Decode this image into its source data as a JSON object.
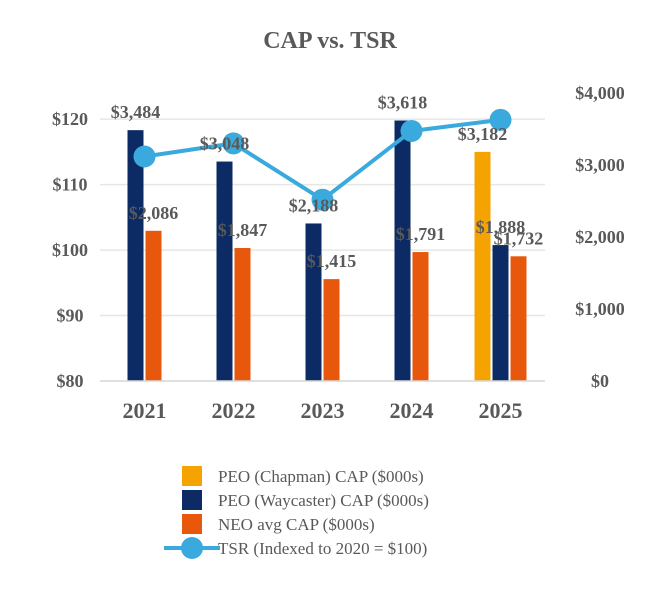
{
  "chart_data": {
    "type": "bar",
    "title": "CAP vs. TSR",
    "categories": [
      "2021",
      "2022",
      "2023",
      "2024",
      "2025"
    ],
    "y_left": {
      "ticks": [
        "$80",
        "$90",
        "$100",
        "$110",
        "$120"
      ],
      "range": [
        80,
        124
      ]
    },
    "y_right": {
      "ticks": [
        "$0",
        "$1,000",
        "$2,000",
        "$3,000",
        "$4,000"
      ],
      "range": [
        0,
        4000
      ]
    },
    "series": [
      {
        "name": "PEO (Chapman) CAP ($000s)",
        "kind": "bar",
        "axis": "right",
        "color": "#F5A300",
        "values": [
          null,
          null,
          null,
          null,
          3182
        ],
        "labels": [
          "",
          "",
          "",
          "",
          "$3,182"
        ]
      },
      {
        "name": "PEO (Waycaster) CAP ($000s)",
        "kind": "bar",
        "axis": "right",
        "color": "#0C2B64",
        "values": [
          3484,
          3048,
          2188,
          3618,
          1888
        ],
        "labels": [
          "$3,484",
          "$3,048",
          "$2,188",
          "$3,618",
          "$1,888"
        ]
      },
      {
        "name": "NEO avg CAP ($000s)",
        "kind": "bar",
        "axis": "right",
        "color": "#E8580C",
        "values": [
          2086,
          1847,
          1415,
          1791,
          1732
        ],
        "labels": [
          "$2,086",
          "$1,847",
          "$1,415",
          "$1,791",
          "$1,732"
        ]
      },
      {
        "name": "TSR (Indexed to 2020 = $100)",
        "kind": "line",
        "axis": "left",
        "color": "#3AA9DD",
        "values": [
          114.3,
          116.3,
          107.7,
          118.2,
          119.9
        ]
      }
    ]
  }
}
